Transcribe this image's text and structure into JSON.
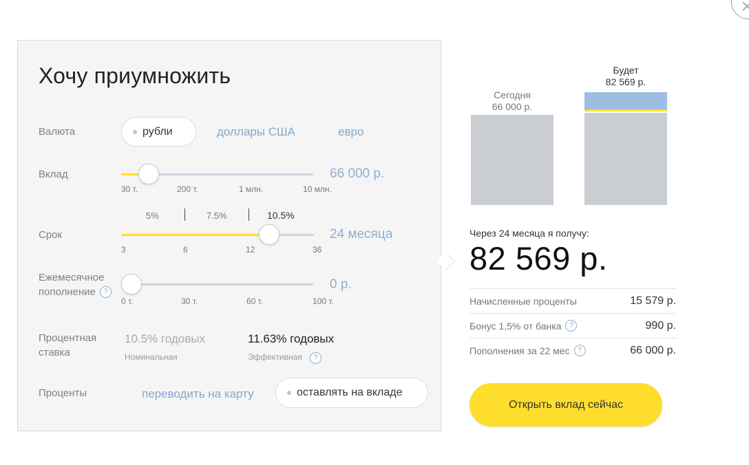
{
  "title": "Хочу приумножить",
  "currency": {
    "label": "Валюта",
    "options": [
      "рубли",
      "доллары США",
      "евро"
    ],
    "selected": "рубли"
  },
  "deposit": {
    "label": "Вклад",
    "value": "66 000 р.",
    "ticks": [
      "30 т.",
      "200 т.",
      "1 млн.",
      "10 млн."
    ],
    "fill_fraction": 0.1
  },
  "term": {
    "label": "Срок",
    "value": "24 месяца",
    "rates": [
      "5%",
      "7.5%",
      "10.5%"
    ],
    "ticks": [
      "3",
      "6",
      "12",
      "36"
    ],
    "fill_fraction": 0.8
  },
  "monthly": {
    "label_line1": "Ежемесячное",
    "label_line2": "пополнение",
    "help": "?",
    "value": "0 р.",
    "ticks": [
      "0 т.",
      "30 т.",
      "60 т.",
      "100 т."
    ],
    "fill_fraction": 0
  },
  "rate": {
    "label_line1": "Процентная",
    "label_line2": "ставка",
    "nominal_value": "10.5% годовых",
    "nominal_caption": "Номинальная",
    "effective_value": "11.63% годовых",
    "effective_caption": "Эффективная",
    "help": "?"
  },
  "interest": {
    "label": "Проценты",
    "options": [
      "переводить на карту",
      "оставлять на вкладе"
    ],
    "selected": "оставлять на вкладе"
  },
  "chart": {
    "today_line1": "Сегодня",
    "today_line2": "66 000 р.",
    "future_line1": "Будет",
    "future_line2": "82 569 р.",
    "today_value": 66000,
    "future_value": 82569,
    "colors": {
      "base": "#cacdd2",
      "interest": "#9dbde3",
      "bonus": "#ffdd2d"
    }
  },
  "result": {
    "caption": "Через 24 месяца я получу:",
    "amount": "82 569 р.",
    "rows": [
      {
        "label": "Начисленные проценты",
        "value": "15 579 р.",
        "help": ""
      },
      {
        "label": "Бонус 1,5% от банка",
        "value": "990 р.",
        "help": "?"
      },
      {
        "label": "Пополнения за 22 мес",
        "value": "66 000 р.",
        "help": "?"
      }
    ]
  },
  "cta": "Открыть вклад сейчас",
  "colors": {
    "accent": "#ffdd2d",
    "link": "#83a7c7",
    "value": "#8cb0d2"
  }
}
